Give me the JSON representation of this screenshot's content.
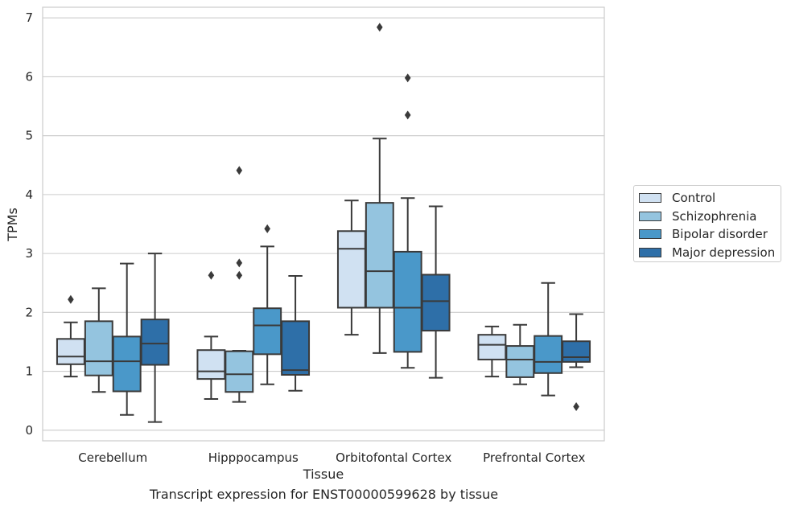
{
  "caption": "Transcript expression for ENST00000599628 by tissue",
  "chart_data": {
    "type": "box",
    "title": "",
    "xlabel": "Tissue",
    "ylabel": "TPMs",
    "ylim": [
      -0.18,
      7.18
    ],
    "yticks": [
      0,
      1,
      2,
      3,
      4,
      5,
      6,
      7
    ],
    "grid": "horizontal",
    "legend_position": "right",
    "categories": [
      "Cerebellum",
      "Hipppocampus",
      "Orbitofontal Cortex",
      "Prefrontal Cortex"
    ],
    "series": [
      {
        "name": "Control",
        "color": "#d0e1f2",
        "boxes": [
          {
            "whislo": 0.91,
            "q1": 1.12,
            "med": 1.25,
            "q3": 1.55,
            "whishi": 1.83,
            "fliers": [
              2.22
            ]
          },
          {
            "whislo": 0.53,
            "q1": 0.87,
            "med": 1.0,
            "q3": 1.36,
            "whishi": 1.59,
            "fliers": [
              2.63
            ]
          },
          {
            "whislo": 1.62,
            "q1": 2.08,
            "med": 3.08,
            "q3": 3.38,
            "whishi": 3.9,
            "fliers": []
          },
          {
            "whislo": 0.91,
            "q1": 1.2,
            "med": 1.45,
            "q3": 1.62,
            "whishi": 1.76,
            "fliers": []
          }
        ]
      },
      {
        "name": "Schizophrenia",
        "color": "#94c4df",
        "boxes": [
          {
            "whislo": 0.65,
            "q1": 0.93,
            "med": 1.17,
            "q3": 1.85,
            "whishi": 2.41,
            "fliers": []
          },
          {
            "whislo": 0.48,
            "q1": 0.65,
            "med": 0.95,
            "q3": 1.34,
            "whishi": 1.35,
            "fliers": [
              2.63,
              2.84,
              4.41
            ]
          },
          {
            "whislo": 1.31,
            "q1": 2.08,
            "med": 2.7,
            "q3": 3.86,
            "whishi": 4.95,
            "fliers": [
              6.84
            ]
          },
          {
            "whislo": 0.78,
            "q1": 0.9,
            "med": 1.2,
            "q3": 1.43,
            "whishi": 1.79,
            "fliers": []
          }
        ]
      },
      {
        "name": "Bipolar disorder",
        "color": "#4a98c9",
        "boxes": [
          {
            "whislo": 0.26,
            "q1": 0.66,
            "med": 1.17,
            "q3": 1.59,
            "whishi": 2.83,
            "fliers": []
          },
          {
            "whislo": 0.78,
            "q1": 1.29,
            "med": 1.78,
            "q3": 2.07,
            "whishi": 3.12,
            "fliers": [
              3.42
            ]
          },
          {
            "whislo": 1.06,
            "q1": 1.33,
            "med": 2.08,
            "q3": 3.03,
            "whishi": 3.94,
            "fliers": [
              5.35,
              5.98
            ]
          },
          {
            "whislo": 0.59,
            "q1": 0.97,
            "med": 1.16,
            "q3": 1.6,
            "whishi": 2.5,
            "fliers": []
          }
        ]
      },
      {
        "name": "Major depression",
        "color": "#2e6fa8",
        "boxes": [
          {
            "whislo": 0.14,
            "q1": 1.11,
            "med": 1.47,
            "q3": 1.88,
            "whishi": 3.0,
            "fliers": []
          },
          {
            "whislo": 0.67,
            "q1": 0.94,
            "med": 1.02,
            "q3": 1.85,
            "whishi": 2.62,
            "fliers": []
          },
          {
            "whislo": 0.89,
            "q1": 1.69,
            "med": 2.19,
            "q3": 2.64,
            "whishi": 3.8,
            "fliers": []
          },
          {
            "whislo": 1.07,
            "q1": 1.16,
            "med": 1.24,
            "q3": 1.51,
            "whishi": 1.97,
            "fliers": [
              0.4
            ]
          }
        ]
      }
    ]
  }
}
